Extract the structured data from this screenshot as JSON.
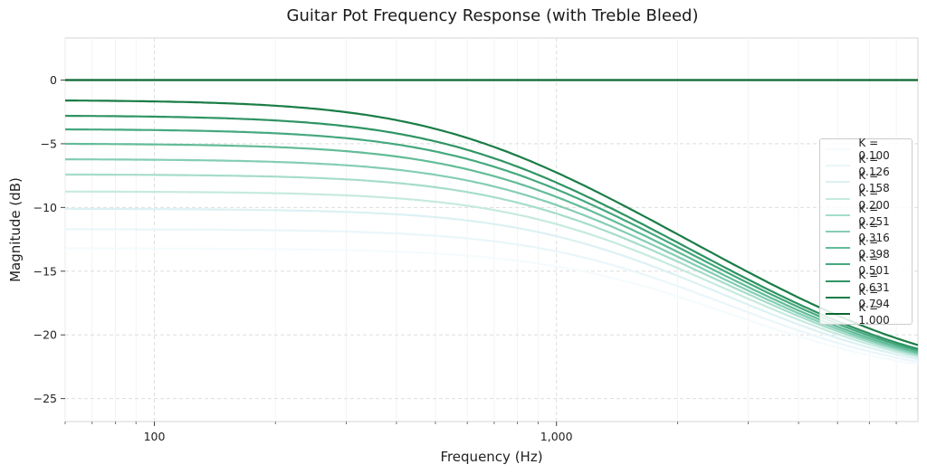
{
  "chart_data": {
    "type": "line",
    "title": "Guitar Pot Frequency Response (with Treble Bleed)",
    "xlabel": "Frequency (Hz)",
    "ylabel": "Magnitude (dB)",
    "xscale": "log",
    "xlim": [
      60,
      7925
    ],
    "ylim": [
      -26.8,
      3.3
    ],
    "xticks": [
      {
        "value": 100,
        "label": "100"
      },
      {
        "value": 1000,
        "label": "1,000"
      }
    ],
    "yticks": [
      {
        "value": 0,
        "label": "0"
      },
      {
        "value": -5,
        "label": "−5"
      },
      {
        "value": -10,
        "label": "−10"
      },
      {
        "value": -15,
        "label": "−15"
      },
      {
        "value": -20,
        "label": "−20"
      },
      {
        "value": -25,
        "label": "−25"
      }
    ],
    "grid": true,
    "legend_position": "center right",
    "high_freq_asymptote_db": -23.6,
    "x": [
      60,
      100,
      200,
      300,
      500,
      700,
      1000,
      1500,
      2000,
      3000,
      5000,
      7925
    ],
    "series": [
      {
        "name": "K = 0.100",
        "color": "#f5fbfd",
        "low_db": -13.2,
        "fc": 1500,
        "values": [
          -13.2,
          -13.2,
          -13.3,
          -13.5,
          -13.9,
          -14.4,
          -15.2,
          -16.6,
          -17.8,
          -19.7,
          -21.8,
          -22.9
        ]
      },
      {
        "name": "K = 0.126",
        "color": "#eaf6fa",
        "low_db": -11.7,
        "fc": 1350,
        "values": [
          -11.7,
          -11.7,
          -11.9,
          -12.1,
          -12.6,
          -13.2,
          -14.2,
          -15.8,
          -17.2,
          -19.3,
          -21.6,
          -22.9
        ]
      },
      {
        "name": "K = 0.158",
        "color": "#dcf1f3",
        "low_db": -10.1,
        "fc": 1200,
        "values": [
          -10.1,
          -10.2,
          -10.3,
          -10.6,
          -11.2,
          -12.0,
          -13.2,
          -15.0,
          -16.6,
          -18.9,
          -21.4,
          -22.8
        ]
      },
      {
        "name": "K = 0.200",
        "color": "#c6eadf",
        "low_db": -8.74,
        "fc": 1080,
        "values": [
          -8.74,
          -8.8,
          -9.0,
          -9.3,
          -10.0,
          -10.9,
          -12.3,
          -14.3,
          -16.0,
          -18.6,
          -21.3,
          -22.8
        ]
      },
      {
        "name": "K = 0.251",
        "color": "#a6dccc",
        "low_db": -7.4,
        "fc": 960,
        "values": [
          -7.4,
          -7.5,
          -7.7,
          -8.1,
          -8.9,
          -9.9,
          -11.4,
          -13.6,
          -15.5,
          -18.3,
          -21.2,
          -22.8
        ]
      },
      {
        "name": "K = 0.316",
        "color": "#84cdb4",
        "low_db": -6.2,
        "fc": 860,
        "values": [
          -6.2,
          -6.3,
          -6.5,
          -6.9,
          -7.8,
          -8.9,
          -10.6,
          -13.0,
          -15.0,
          -18.0,
          -21.1,
          -22.8
        ]
      },
      {
        "name": "K = 0.398",
        "color": "#62bc98",
        "low_db": -4.98,
        "fc": 770,
        "values": [
          -4.98,
          -5.1,
          -5.3,
          -5.8,
          -6.8,
          -8.0,
          -9.8,
          -12.4,
          -14.5,
          -17.7,
          -21.0,
          -22.7
        ]
      },
      {
        "name": "K = 0.501",
        "color": "#45a87e",
        "low_db": -3.84,
        "fc": 700,
        "values": [
          -3.84,
          -3.9,
          -4.2,
          -4.7,
          -5.8,
          -7.1,
          -9.0,
          -11.8,
          -14.1,
          -17.4,
          -20.9,
          -22.7
        ]
      },
      {
        "name": "K = 0.631",
        "color": "#2f9463",
        "low_db": -2.77,
        "fc": 640,
        "values": [
          -2.77,
          -2.9,
          -3.2,
          -3.7,
          -4.9,
          -6.3,
          -8.3,
          -11.2,
          -13.6,
          -17.1,
          -20.7,
          -22.6
        ]
      },
      {
        "name": "K = 0.794",
        "color": "#1a7d46",
        "low_db": -1.56,
        "fc": 600,
        "values": [
          -1.56,
          -1.7,
          -2.0,
          -2.6,
          -3.8,
          -5.3,
          -7.4,
          -10.5,
          -12.9,
          -16.5,
          -20.1,
          -21.9
        ]
      },
      {
        "name": "K = 1.000",
        "color": "#0b6630",
        "low_db": 0,
        "fc": null,
        "values": [
          0,
          0,
          0,
          0,
          0,
          0,
          0,
          0,
          0,
          0,
          0,
          0
        ]
      }
    ]
  }
}
